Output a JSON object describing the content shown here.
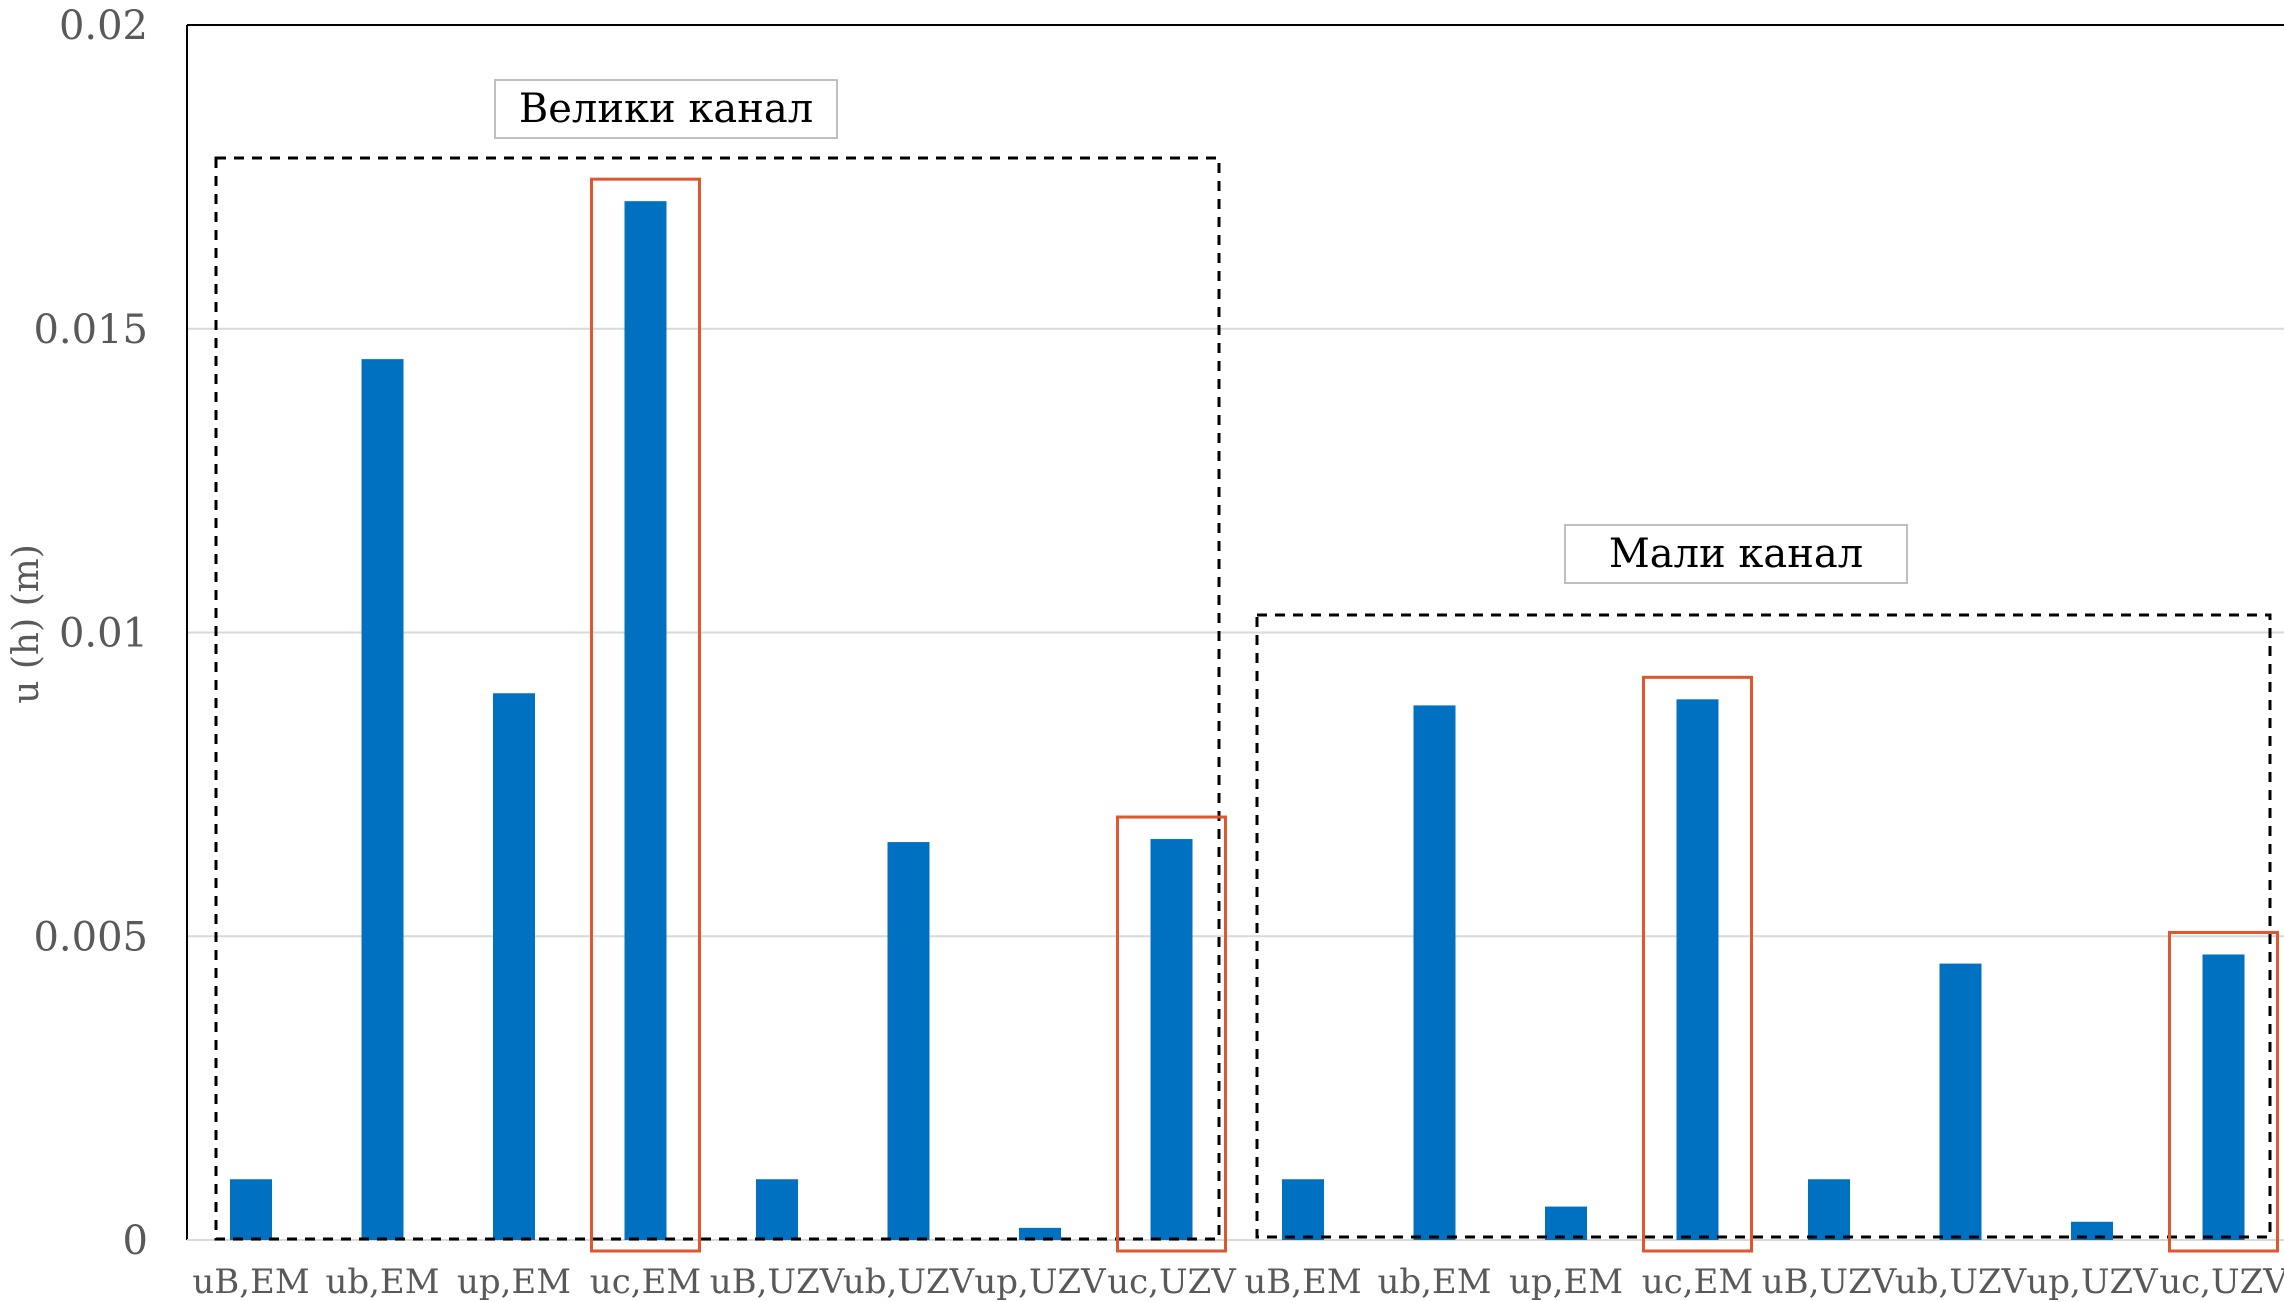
{
  "chart_data": {
    "type": "bar",
    "ylabel": "u (h) (m)",
    "ylim": [
      0,
      0.02
    ],
    "yticks": [
      "0",
      "0.005",
      "0.01",
      "0.015",
      "0.02"
    ],
    "grid": true,
    "categories": [
      "uB,EM",
      "ub,EM",
      "up,EM",
      "uc,EM",
      "uB,UZV",
      "ub,UZV",
      "up,UZV",
      "uc,UZV",
      "uB,EM",
      "ub,EM",
      "up,EM",
      "uc,EM",
      "uB,UZV",
      "ub,UZV",
      "up,UZV",
      "uc,UZV"
    ],
    "values": [
      0.001,
      0.0145,
      0.009,
      0.0171,
      0.001,
      0.00655,
      0.0002,
      0.0066,
      0.001,
      0.0088,
      0.00055,
      0.0089,
      0.001,
      0.00455,
      0.0003,
      0.0047
    ],
    "bar_color": "#0070C0",
    "highlight_color": "#E0562E",
    "groups": [
      {
        "label": "Велики канал",
        "start": 0,
        "end": 7
      },
      {
        "label": "Мали канал",
        "start": 8,
        "end": 15
      }
    ],
    "highlighted_indices": [
      3,
      7,
      11,
      15
    ]
  }
}
